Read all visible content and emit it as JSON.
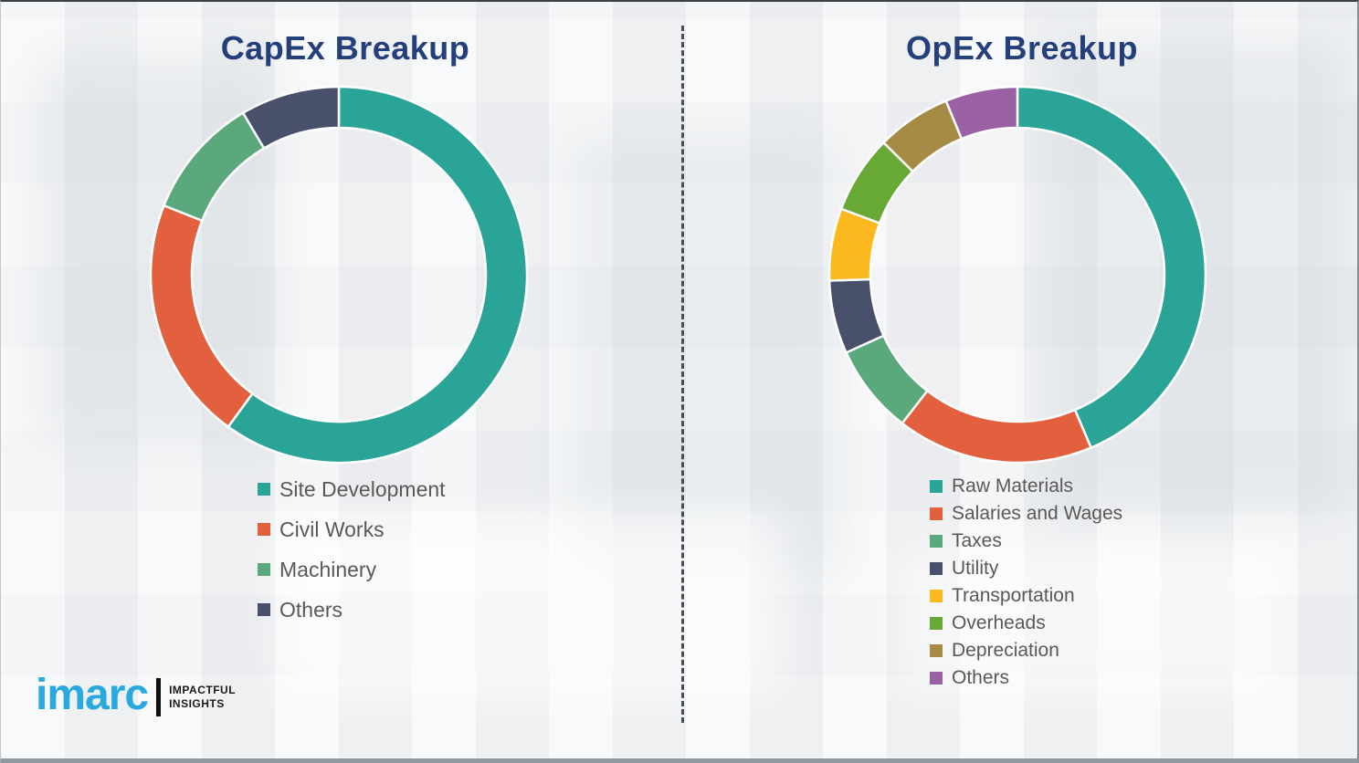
{
  "divider": {
    "style": "vertical-dashed"
  },
  "logo": {
    "brand": "imarc",
    "tagline_line1": "IMPACTFUL",
    "tagline_line2": "INSIGHTS",
    "brand_color": "#29a9e0"
  },
  "title_color": "#24407c",
  "legend_text_color": "#595959",
  "chart_data": [
    {
      "type": "pie",
      "subtype": "donut",
      "title": "CapEx Breakup",
      "categories": [
        "Site Development",
        "Civil Works",
        "Machinery",
        "Others"
      ],
      "values": [
        60,
        21,
        10.5,
        8.5
      ],
      "values_unit": "percent-estimated-from-arc-angles",
      "colors": [
        "#2aa496",
        "#e2603e",
        "#5aa87b",
        "#49506b"
      ],
      "start_angle_deg": 0,
      "direction": "clockwise",
      "legend_position": "bottom-left"
    },
    {
      "type": "pie",
      "subtype": "donut",
      "title": "OpEx Breakup",
      "categories": [
        "Raw Materials",
        "Salaries and Wages",
        "Taxes",
        "Utility",
        "Transportation",
        "Overheads",
        "Depreciation",
        "Others"
      ],
      "values": [
        43.6,
        16.9,
        7.7,
        6.3,
        6.2,
        6.7,
        6.4,
        6.2
      ],
      "values_unit": "percent-estimated-from-arc-angles",
      "colors": [
        "#2aa496",
        "#e2603e",
        "#5aa87b",
        "#49506b",
        "#fbb81f",
        "#68a834",
        "#a68b44",
        "#9b61a5"
      ],
      "start_angle_deg": 0,
      "direction": "clockwise",
      "legend_position": "bottom-left"
    }
  ]
}
